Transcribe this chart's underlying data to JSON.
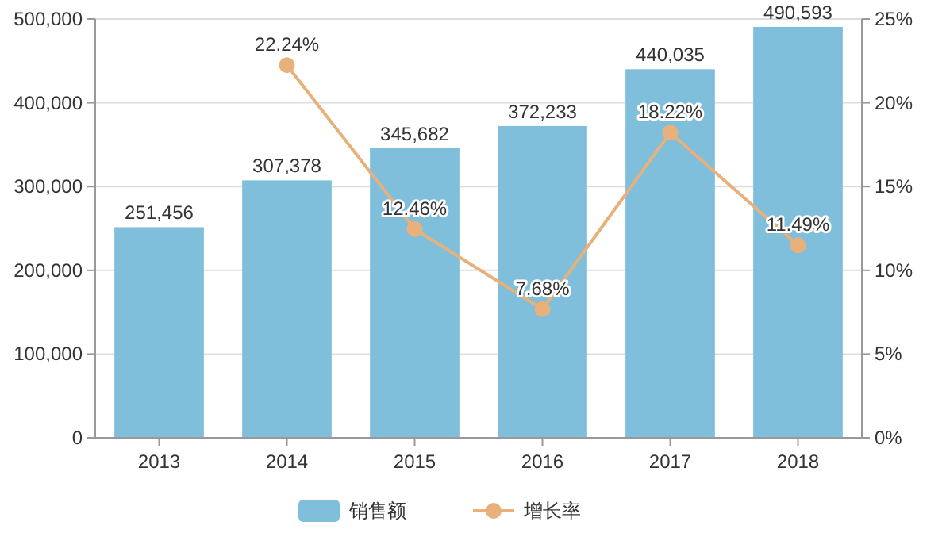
{
  "chart_data": {
    "type": "bar",
    "categories": [
      "2013",
      "2014",
      "2015",
      "2016",
      "2017",
      "2018"
    ],
    "series": [
      {
        "name": "销售额",
        "color": "#7fbfdc",
        "values": [
          251456,
          307378,
          345682,
          372233,
          440035,
          490593
        ],
        "value_labels": [
          "251,456",
          "307,378",
          "345,682",
          "372,233",
          "440,035",
          "490,593"
        ]
      },
      {
        "name": "增长率",
        "type": "line",
        "axis": "y2",
        "color": "#e8b07a",
        "marker": "circle",
        "values": [
          null,
          22.24,
          12.46,
          7.68,
          18.22,
          11.49
        ],
        "value_labels": [
          null,
          "22.24%",
          "12.46%",
          "7.68%",
          "18.22%",
          "11.49%"
        ]
      }
    ],
    "ylim": [
      0,
      500000
    ],
    "yticks": [
      {
        "value": 0,
        "label": "0"
      },
      {
        "value": 100000,
        "label": "100,000"
      },
      {
        "value": 200000,
        "label": "200,000"
      },
      {
        "value": 300000,
        "label": "300,000"
      },
      {
        "value": 400000,
        "label": "400,000"
      },
      {
        "value": 500000,
        "label": "500,000"
      }
    ],
    "y2lim": [
      0,
      25
    ],
    "y2ticks": [
      {
        "value": 0,
        "label": "0%"
      },
      {
        "value": 5,
        "label": "5%"
      },
      {
        "value": 10,
        "label": "10%"
      },
      {
        "value": 15,
        "label": "15%"
      },
      {
        "value": 20,
        "label": "20%"
      },
      {
        "value": 25,
        "label": "25%"
      }
    ],
    "grid": "y",
    "legend": "bottom"
  }
}
